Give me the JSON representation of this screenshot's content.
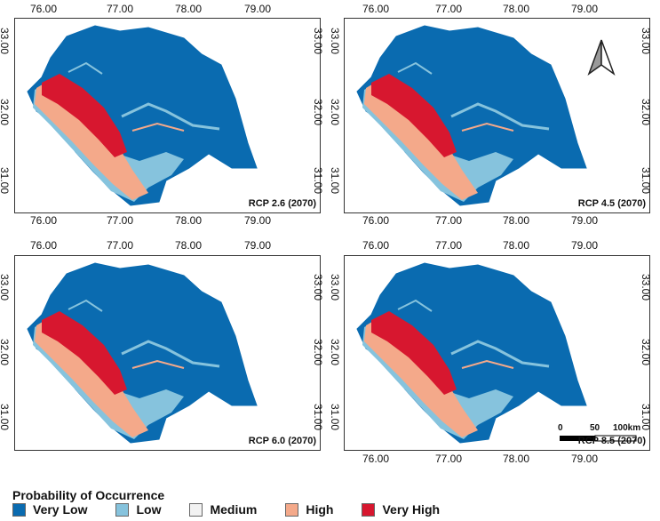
{
  "panels": [
    {
      "label": "RCP 2.6 (2070)",
      "x_ticks": [
        "76.00",
        "77.00",
        "78.00",
        "79.00"
      ],
      "y_ticks": [
        "33.00",
        "32.00",
        "31.00"
      ]
    },
    {
      "label": "RCP 4.5 (2070)",
      "x_ticks": [
        "76.00",
        "77.00",
        "78.00",
        "79.00"
      ],
      "y_ticks": [
        "33.00",
        "32.00",
        "31.00"
      ]
    },
    {
      "label": "RCP 6.0 (2070)",
      "x_ticks": [
        "76.00",
        "77.00",
        "78.00",
        "79.00"
      ],
      "y_ticks": [
        "33.00",
        "32.00",
        "31.00"
      ]
    },
    {
      "label": "RCP 8.5 (2070)",
      "x_ticks": [
        "76.00",
        "77.00",
        "78.00",
        "79.00"
      ],
      "y_ticks": [
        "33.00",
        "32.00",
        "31.00"
      ]
    }
  ],
  "scale_bar": {
    "labels": [
      "0",
      "50",
      "100km"
    ]
  },
  "legend": {
    "title": "Probability of Occurrence",
    "items": [
      {
        "label": "Very Low",
        "color": "#0a6bb0"
      },
      {
        "label": "Low",
        "color": "#86c3dd"
      },
      {
        "label": "Medium",
        "color": "#f2f2f2"
      },
      {
        "label": "High",
        "color": "#f4a98a"
      },
      {
        "label": "Very High",
        "color": "#d7172f"
      }
    ]
  },
  "colors": {
    "very_low": "#0a6bb0",
    "low": "#86c3dd",
    "medium": "#f2f2f2",
    "high": "#f4a98a",
    "very_high": "#d7172f"
  }
}
